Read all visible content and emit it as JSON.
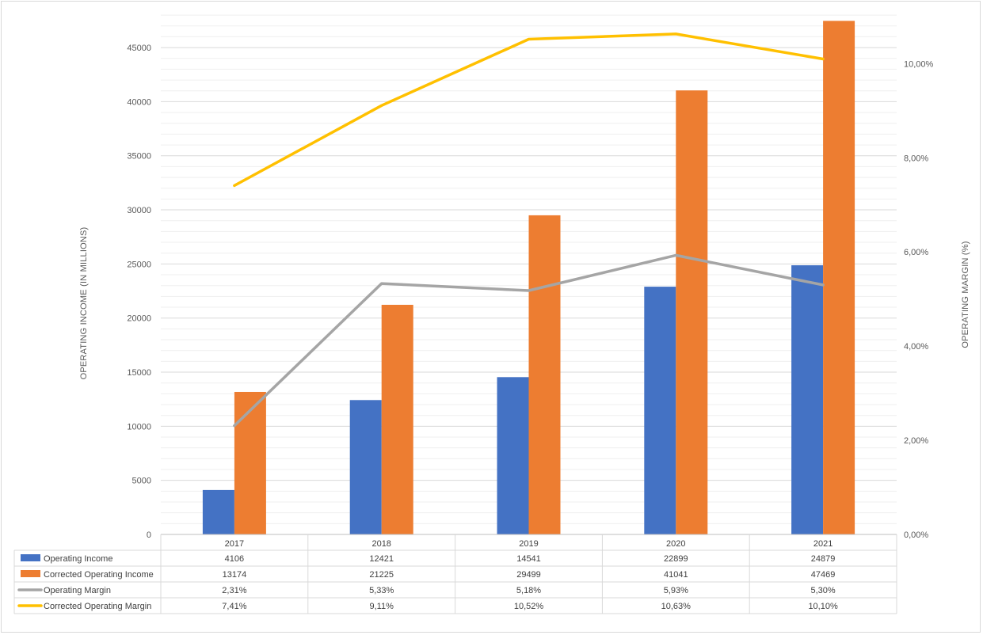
{
  "chart_data": {
    "type": "bar",
    "title": "",
    "categories": [
      "2017",
      "2018",
      "2019",
      "2020",
      "2021"
    ],
    "ylabel_left": "OPERATING INCOME (IN MILLIONS)",
    "ylabel_right": "OPERATING MARGIN (%)",
    "ylim_left": [
      0,
      48300
    ],
    "ylim_right": [
      0,
      0.111
    ],
    "yticks_left": [
      "0",
      "5000",
      "10000",
      "15000",
      "20000",
      "25000",
      "30000",
      "35000",
      "40000",
      "45000"
    ],
    "yticks_right": [
      "0,00%",
      "2,00%",
      "4,00%",
      "6,00%",
      "8,00%",
      "10,00%"
    ],
    "grid": true,
    "legend": "data-table",
    "series": [
      {
        "name": "Operating Income",
        "type": "bar",
        "axis": "left",
        "color": "#4472C4",
        "values": [
          4106,
          12421,
          14541,
          22899,
          24879
        ],
        "labels": [
          "4106",
          "12421",
          "14541",
          "22899",
          "24879"
        ]
      },
      {
        "name": "Corrected Operating Income",
        "type": "bar",
        "axis": "left",
        "color": "#ED7D31",
        "values": [
          13174,
          21225,
          29499,
          41041,
          47469
        ],
        "labels": [
          "13174",
          "21225",
          "29499",
          "41041",
          "47469"
        ]
      },
      {
        "name": "Operating Margin",
        "type": "line",
        "axis": "right",
        "color": "#A5A5A5",
        "values": [
          0.0231,
          0.0533,
          0.0518,
          0.0593,
          0.053
        ],
        "labels": [
          "2,31%",
          "5,33%",
          "5,18%",
          "5,93%",
          "5,30%"
        ]
      },
      {
        "name": "Corrected Operating Margin",
        "type": "line",
        "axis": "right",
        "color": "#FFC000",
        "values": [
          0.0741,
          0.0911,
          0.1052,
          0.1063,
          0.101
        ],
        "labels": [
          "7,41%",
          "9,11%",
          "10,52%",
          "10,63%",
          "10,10%"
        ]
      }
    ]
  }
}
